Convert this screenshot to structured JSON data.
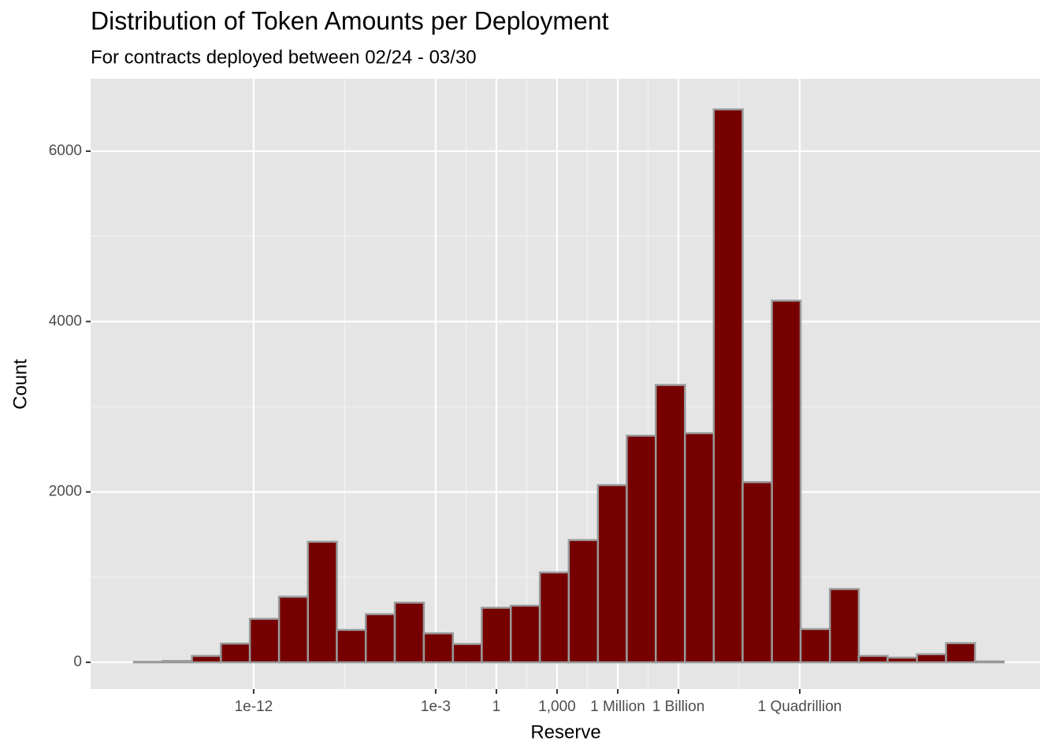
{
  "chart_data": {
    "type": "histogram",
    "title": "Distribution of Token Amounts per Deployment",
    "subtitle": "For contracts deployed between 02/24 - 03/30",
    "x_label": "Reserve",
    "y_label": "Count",
    "x_log": true,
    "grid": true,
    "color": "#760000",
    "edge_color": "#999999",
    "bins": [
      1.2e-18,
      3.2e-17,
      8.9e-16,
      2.4e-14,
      6.5e-13,
      1.8e-11,
      4.8e-10,
      1.3e-08,
      3.5e-07,
      9.5e-06,
      0.00026,
      0.0071,
      0.19,
      5.2,
      141,
      3800,
      105000,
      2800000,
      76000000,
      2100000000,
      56000000000.0,
      1500000000000.0,
      42000000000000.0,
      1100000000000000.0,
      3.1e+16,
      8.3e+17,
      2.2e+19,
      6.2e+20,
      1.7e+22,
      4.6e+23,
      1.2e+25
    ],
    "values": [
      5,
      15,
      75,
      220,
      510,
      770,
      1415,
      380,
      565,
      700,
      340,
      215,
      640,
      665,
      1055,
      1435,
      2080,
      2660,
      3255,
      2690,
      6490,
      2115,
      4245,
      390,
      860,
      75,
      55,
      95,
      225,
      10
    ],
    "xlim": [
      8.7e-21,
      7.6e+26
    ],
    "xticks": [
      {
        "value": 1e-12,
        "label": "1e-12"
      },
      {
        "value": 0.001,
        "label": "1e-3"
      },
      1,
      {
        "value": 1000,
        "label": "1,000"
      },
      {
        "value": 1000000,
        "label": "1 Million"
      },
      {
        "value": 1000000000,
        "label": "1 Billion"
      },
      {
        "value": 1000000000000000.0,
        "label": "1 Quadrillion"
      }
    ],
    "ylim": [
      -314,
      6850
    ],
    "yticks": [
      0,
      2000,
      4000,
      6000
    ]
  }
}
